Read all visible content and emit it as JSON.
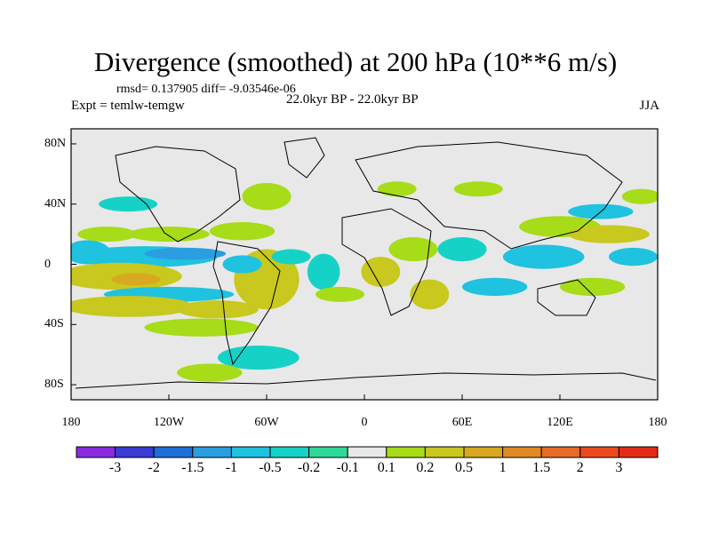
{
  "chart_data": {
    "type": "heatmap",
    "title": "Divergence (smoothed) at 200 hPa (10**6 m/s)",
    "stats_text": "rmsd= 0.137905 diff= -9.03546e-06",
    "experiment_text": "Expt = temlw-temgw",
    "period_text": "22.0kyr BP - 22.0kyr BP",
    "season_text": "JJA",
    "xlim": [
      -180,
      180
    ],
    "ylim": [
      -90,
      90
    ],
    "x_ticks": [
      {
        "value": -180,
        "label": "180"
      },
      {
        "value": -120,
        "label": "120W"
      },
      {
        "value": -60,
        "label": "60W"
      },
      {
        "value": 0,
        "label": "0"
      },
      {
        "value": 60,
        "label": "60E"
      },
      {
        "value": 120,
        "label": "120E"
      },
      {
        "value": 180,
        "label": "180"
      }
    ],
    "y_ticks": [
      {
        "value": 80,
        "label": "80N"
      },
      {
        "value": 40,
        "label": "40N"
      },
      {
        "value": 0,
        "label": "0"
      },
      {
        "value": -40,
        "label": "40S"
      },
      {
        "value": -80,
        "label": "80S"
      }
    ],
    "color_levels": [
      "-3",
      "-2",
      "-1.5",
      "-1",
      "-0.5",
      "-0.2",
      "-0.1",
      "0.1",
      "0.2",
      "0.5",
      "1",
      "1.5",
      "2",
      "3"
    ],
    "color_bins": [
      "#8a2be2",
      "#3b3bd6",
      "#1e6fd9",
      "#2a9ee0",
      "#1fc2df",
      "#16d2c6",
      "#2ed99a",
      "#e8e8e8",
      "#a6dc18",
      "#c8c81e",
      "#d8a820",
      "#e08a24",
      "#e86a28",
      "#ea4a1e",
      "#e62a18"
    ],
    "regions": [
      {
        "lon": -170,
        "lat": 8,
        "rx": 14,
        "ry": 8,
        "bin": 4
      },
      {
        "lon": -135,
        "lat": 5,
        "rx": 45,
        "ry": 7,
        "bin": 4
      },
      {
        "lon": -110,
        "lat": 7,
        "rx": 25,
        "ry": 4,
        "bin": 3
      },
      {
        "lon": -150,
        "lat": -8,
        "rx": 38,
        "ry": 9,
        "bin": 9
      },
      {
        "lon": -140,
        "lat": -10,
        "rx": 15,
        "ry": 4,
        "bin": 10
      },
      {
        "lon": -120,
        "lat": -20,
        "rx": 40,
        "ry": 5,
        "bin": 4
      },
      {
        "lon": -145,
        "lat": -28,
        "rx": 40,
        "ry": 7,
        "bin": 9
      },
      {
        "lon": -90,
        "lat": -30,
        "rx": 25,
        "ry": 6,
        "bin": 9
      },
      {
        "lon": -100,
        "lat": -42,
        "rx": 35,
        "ry": 6,
        "bin": 8
      },
      {
        "lon": -158,
        "lat": 20,
        "rx": 18,
        "ry": 5,
        "bin": 8
      },
      {
        "lon": -120,
        "lat": 20,
        "rx": 25,
        "ry": 5,
        "bin": 8
      },
      {
        "lon": -145,
        "lat": 40,
        "rx": 18,
        "ry": 5,
        "bin": 5
      },
      {
        "lon": -75,
        "lat": 22,
        "rx": 20,
        "ry": 6,
        "bin": 8
      },
      {
        "lon": -60,
        "lat": -10,
        "rx": 20,
        "ry": 20,
        "bin": 9
      },
      {
        "lon": -75,
        "lat": 0,
        "rx": 12,
        "ry": 6,
        "bin": 4
      },
      {
        "lon": -60,
        "lat": 45,
        "rx": 15,
        "ry": 9,
        "bin": 8
      },
      {
        "lon": -45,
        "lat": 5,
        "rx": 12,
        "ry": 5,
        "bin": 5
      },
      {
        "lon": -65,
        "lat": -62,
        "rx": 25,
        "ry": 8,
        "bin": 5
      },
      {
        "lon": -95,
        "lat": -72,
        "rx": 20,
        "ry": 6,
        "bin": 8
      },
      {
        "lon": -25,
        "lat": -5,
        "rx": 10,
        "ry": 12,
        "bin": 5
      },
      {
        "lon": -15,
        "lat": -20,
        "rx": 15,
        "ry": 5,
        "bin": 8
      },
      {
        "lon": 10,
        "lat": -5,
        "rx": 12,
        "ry": 10,
        "bin": 9
      },
      {
        "lon": 20,
        "lat": 50,
        "rx": 12,
        "ry": 5,
        "bin": 8
      },
      {
        "lon": 30,
        "lat": 10,
        "rx": 15,
        "ry": 8,
        "bin": 8
      },
      {
        "lon": 40,
        "lat": -20,
        "rx": 12,
        "ry": 10,
        "bin": 9
      },
      {
        "lon": 60,
        "lat": 10,
        "rx": 15,
        "ry": 8,
        "bin": 5
      },
      {
        "lon": 70,
        "lat": 50,
        "rx": 15,
        "ry": 5,
        "bin": 8
      },
      {
        "lon": 80,
        "lat": -15,
        "rx": 20,
        "ry": 6,
        "bin": 4
      },
      {
        "lon": 110,
        "lat": 5,
        "rx": 25,
        "ry": 8,
        "bin": 4
      },
      {
        "lon": 120,
        "lat": 25,
        "rx": 25,
        "ry": 7,
        "bin": 8
      },
      {
        "lon": 150,
        "lat": 20,
        "rx": 25,
        "ry": 6,
        "bin": 9
      },
      {
        "lon": 145,
        "lat": 35,
        "rx": 20,
        "ry": 5,
        "bin": 4
      },
      {
        "lon": 165,
        "lat": 5,
        "rx": 15,
        "ry": 6,
        "bin": 4
      },
      {
        "lon": 140,
        "lat": -15,
        "rx": 20,
        "ry": 6,
        "bin": 8
      },
      {
        "lon": 170,
        "lat": 45,
        "rx": 12,
        "ry": 5,
        "bin": 8
      }
    ]
  }
}
